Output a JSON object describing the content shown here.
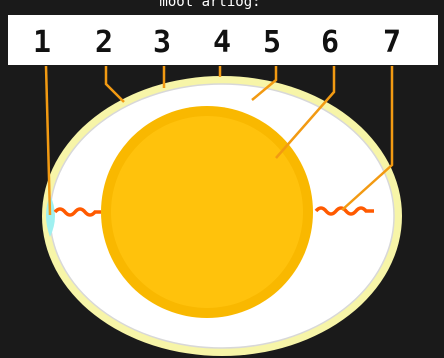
{
  "header": {
    "title": "moot artiog:"
  },
  "labels": [
    "1",
    "2",
    "3",
    "4",
    "5",
    "6",
    "7"
  ]
}
